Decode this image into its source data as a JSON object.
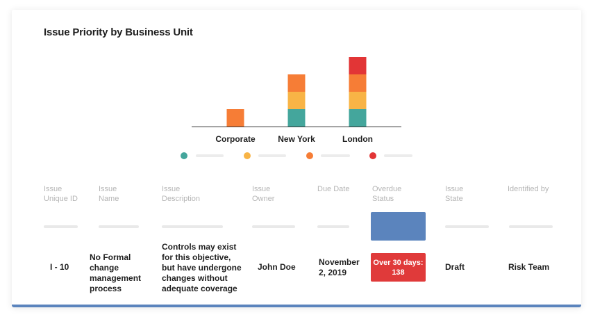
{
  "title": "Issue Priority by Business Unit",
  "chart_data": {
    "type": "bar",
    "stacked": true,
    "categories": [
      "Corporate",
      "New York",
      "London"
    ],
    "series": [
      {
        "color": "#44a69c",
        "values": [
          0,
          1,
          1
        ]
      },
      {
        "color": "#f8b446",
        "values": [
          0,
          1,
          1
        ]
      },
      {
        "color": "#f67d36",
        "values": [
          1,
          1,
          1
        ]
      },
      {
        "color": "#e23536",
        "values": [
          0,
          0,
          1
        ]
      }
    ]
  },
  "legend": [
    {
      "color": "#44a69c"
    },
    {
      "color": "#f8b446"
    },
    {
      "color": "#f67d36"
    },
    {
      "color": "#e23536"
    }
  ],
  "table": {
    "headers": [
      "Issue\nUnique ID",
      "Issue\nName",
      "Issue\nDescription",
      "Issue\nOwner",
      "Due Date",
      "Overdue\nStatus",
      "Issue\nState",
      "Identified by"
    ],
    "row": {
      "id": "I - 10",
      "name": "No Formal change management process",
      "description": "Controls may exist for this objective, but have undergone changes without adequate coverage",
      "owner": "John Doe",
      "due_date": "November 2, 2019",
      "overdue_status": "Over 30 days: 138",
      "state": "Draft",
      "identified_by": "Risk Team"
    }
  },
  "colors": {
    "accent": "#5b84bd",
    "overdue": "#e03a3a"
  }
}
